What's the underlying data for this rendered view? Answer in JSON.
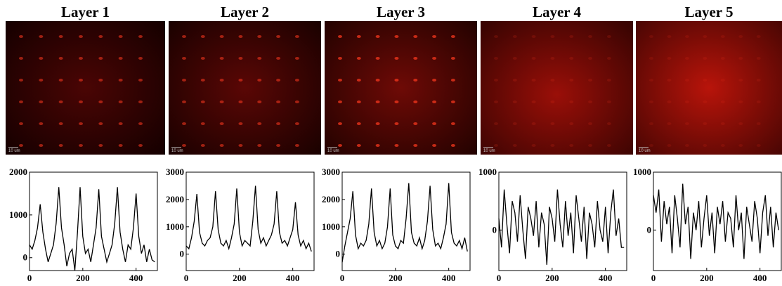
{
  "chart_data": [
    {
      "type": "line",
      "title": "Layer 1",
      "scale_bar_label": "10 um",
      "color": "#000000",
      "x": [
        0,
        10,
        20,
        30,
        40,
        50,
        60,
        70,
        80,
        90,
        100,
        110,
        120,
        130,
        140,
        150,
        160,
        170,
        180,
        190,
        200,
        210,
        220,
        230,
        240,
        250,
        260,
        270,
        280,
        290,
        300,
        310,
        320,
        330,
        340,
        350,
        360,
        370,
        380,
        390,
        400,
        410,
        420,
        430,
        440,
        450,
        460,
        470
      ],
      "values": [
        300,
        200,
        400,
        700,
        1250,
        600,
        200,
        -100,
        100,
        300,
        800,
        1650,
        700,
        300,
        -200,
        100,
        200,
        -300,
        600,
        1650,
        500,
        100,
        200,
        -100,
        300,
        700,
        1600,
        500,
        200,
        -100,
        100,
        300,
        800,
        1650,
        600,
        200,
        -100,
        300,
        200,
        700,
        1500,
        500,
        100,
        300,
        -100,
        200,
        -50,
        -100
      ],
      "xlim": [
        0,
        480
      ],
      "ylim": [
        -300,
        2000
      ],
      "xticks": [
        0,
        200,
        400
      ],
      "yticks": [
        0,
        1000,
        2000
      ]
    },
    {
      "type": "line",
      "title": "Layer 2",
      "scale_bar_label": "10 um",
      "color": "#000000",
      "x": [
        0,
        10,
        20,
        30,
        40,
        50,
        60,
        70,
        80,
        90,
        100,
        110,
        120,
        130,
        140,
        150,
        160,
        170,
        180,
        190,
        200,
        210,
        220,
        230,
        240,
        250,
        260,
        270,
        280,
        290,
        300,
        310,
        320,
        330,
        340,
        350,
        360,
        370,
        380,
        390,
        400,
        410,
        420,
        430,
        440,
        450,
        460,
        470
      ],
      "values": [
        300,
        200,
        600,
        1200,
        2200,
        800,
        400,
        300,
        500,
        600,
        1000,
        2300,
        900,
        400,
        300,
        500,
        200,
        600,
        1100,
        2400,
        800,
        300,
        500,
        400,
        300,
        1200,
        2500,
        900,
        400,
        600,
        300,
        500,
        700,
        1100,
        2300,
        800,
        400,
        500,
        300,
        600,
        900,
        1900,
        700,
        300,
        500,
        200,
        400,
        100
      ],
      "xlim": [
        0,
        480
      ],
      "ylim": [
        -600,
        3000
      ],
      "xticks": [
        0,
        200,
        400
      ],
      "yticks": [
        0,
        1000,
        2000,
        3000
      ]
    },
    {
      "type": "line",
      "title": "Layer 3",
      "scale_bar_label": "10 um",
      "color": "#000000",
      "x": [
        0,
        10,
        20,
        30,
        40,
        50,
        60,
        70,
        80,
        90,
        100,
        110,
        120,
        130,
        140,
        150,
        160,
        170,
        180,
        190,
        200,
        210,
        220,
        230,
        240,
        250,
        260,
        270,
        280,
        290,
        300,
        310,
        320,
        330,
        340,
        350,
        360,
        370,
        380,
        390,
        400,
        410,
        420,
        430,
        440,
        450,
        460,
        470
      ],
      "values": [
        -300,
        300,
        800,
        1300,
        2300,
        700,
        200,
        400,
        300,
        500,
        1100,
        2400,
        800,
        300,
        500,
        200,
        400,
        1000,
        2400,
        700,
        300,
        200,
        500,
        400,
        1300,
        2600,
        800,
        400,
        300,
        600,
        200,
        500,
        1200,
        2500,
        900,
        300,
        400,
        200,
        600,
        1100,
        2600,
        800,
        400,
        300,
        500,
        200,
        600,
        100
      ],
      "xlim": [
        0,
        480
      ],
      "ylim": [
        -600,
        3000
      ],
      "xticks": [
        0,
        200,
        400
      ],
      "yticks": [
        0,
        1000,
        2000,
        3000
      ]
    },
    {
      "type": "line",
      "title": "Layer 4",
      "scale_bar_label": "10 um",
      "color": "#000000",
      "x": [
        0,
        10,
        20,
        30,
        40,
        50,
        60,
        70,
        80,
        90,
        100,
        110,
        120,
        130,
        140,
        150,
        160,
        170,
        180,
        190,
        200,
        210,
        220,
        230,
        240,
        250,
        260,
        270,
        280,
        290,
        300,
        310,
        320,
        330,
        340,
        350,
        360,
        370,
        380,
        390,
        400,
        410,
        420,
        430,
        440,
        450,
        460,
        470
      ],
      "values": [
        200,
        -300,
        700,
        100,
        -400,
        500,
        300,
        -200,
        600,
        0,
        -500,
        400,
        200,
        -100,
        500,
        -300,
        300,
        100,
        -600,
        400,
        200,
        -200,
        700,
        100,
        -300,
        500,
        -100,
        300,
        -400,
        600,
        200,
        -200,
        400,
        -500,
        300,
        100,
        -300,
        500,
        0,
        -200,
        400,
        -400,
        300,
        700,
        -100,
        200,
        -300,
        -300
      ],
      "xlim": [
        0,
        480
      ],
      "ylim": [
        -700,
        1000
      ],
      "xticks": [
        0,
        200,
        400
      ],
      "yticks": [
        0,
        1000
      ]
    },
    {
      "type": "line",
      "title": "Layer 5",
      "scale_bar_label": "10 um",
      "color": "#000000",
      "x": [
        0,
        10,
        20,
        30,
        40,
        50,
        60,
        70,
        80,
        90,
        100,
        110,
        120,
        130,
        140,
        150,
        160,
        170,
        180,
        190,
        200,
        210,
        220,
        230,
        240,
        250,
        260,
        270,
        280,
        290,
        300,
        310,
        320,
        330,
        340,
        350,
        360,
        370,
        380,
        390,
        400,
        410,
        420,
        430,
        440,
        450,
        460,
        470
      ],
      "values": [
        600,
        300,
        700,
        -200,
        500,
        100,
        400,
        -400,
        600,
        200,
        -300,
        800,
        100,
        400,
        -500,
        300,
        0,
        500,
        -300,
        200,
        600,
        -100,
        300,
        -400,
        400,
        100,
        500,
        -200,
        300,
        200,
        -300,
        600,
        0,
        300,
        -500,
        400,
        100,
        -200,
        500,
        200,
        -400,
        300,
        600,
        -100,
        400,
        -300,
        300,
        0
      ],
      "xlim": [
        0,
        480
      ],
      "ylim": [
        -700,
        1000
      ],
      "xticks": [
        0,
        200,
        400
      ],
      "yticks": [
        0,
        1000
      ]
    }
  ]
}
